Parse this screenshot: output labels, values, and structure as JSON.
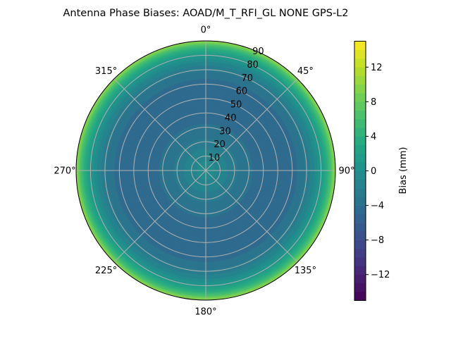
{
  "chart_data": {
    "type": "heatmap",
    "subtype": "polar-contour",
    "title": "Antenna Phase Biases: AOAD/M_T_RFI_GL NONE GPS-L2",
    "angular_ticks": [
      "0°",
      "45°",
      "90°",
      "135°",
      "180°",
      "225°",
      "270°",
      "315°"
    ],
    "radial_ticks": [
      "10",
      "20",
      "30",
      "40",
      "50",
      "60",
      "70",
      "80",
      "90"
    ],
    "radial_range": [
      0,
      90
    ],
    "grid": true,
    "colormap": "viridis",
    "colorbar": {
      "label": "Bias (mm)",
      "range": [
        -15,
        15
      ],
      "ticks": [
        "−12",
        "−8",
        "−4",
        "0",
        "4",
        "8",
        "12"
      ],
      "tick_values": [
        -12,
        -8,
        -4,
        0,
        4,
        8,
        12
      ],
      "level_step": 1,
      "placement": "right"
    },
    "zenith_profile": {
      "zenith_deg": [
        0,
        5,
        10,
        15,
        20,
        25,
        30,
        35,
        40,
        45,
        50,
        55,
        60,
        65,
        70,
        75,
        80,
        85,
        90
      ],
      "bias_mm": [
        -0.5,
        -0.8,
        -1.5,
        -2,
        -2.8,
        -3.3,
        -3.8,
        -4.2,
        -4.6,
        -4.9,
        -5,
        -5,
        -4.6,
        -3.8,
        -2.8,
        -1.2,
        1,
        4.5,
        10
      ]
    }
  }
}
